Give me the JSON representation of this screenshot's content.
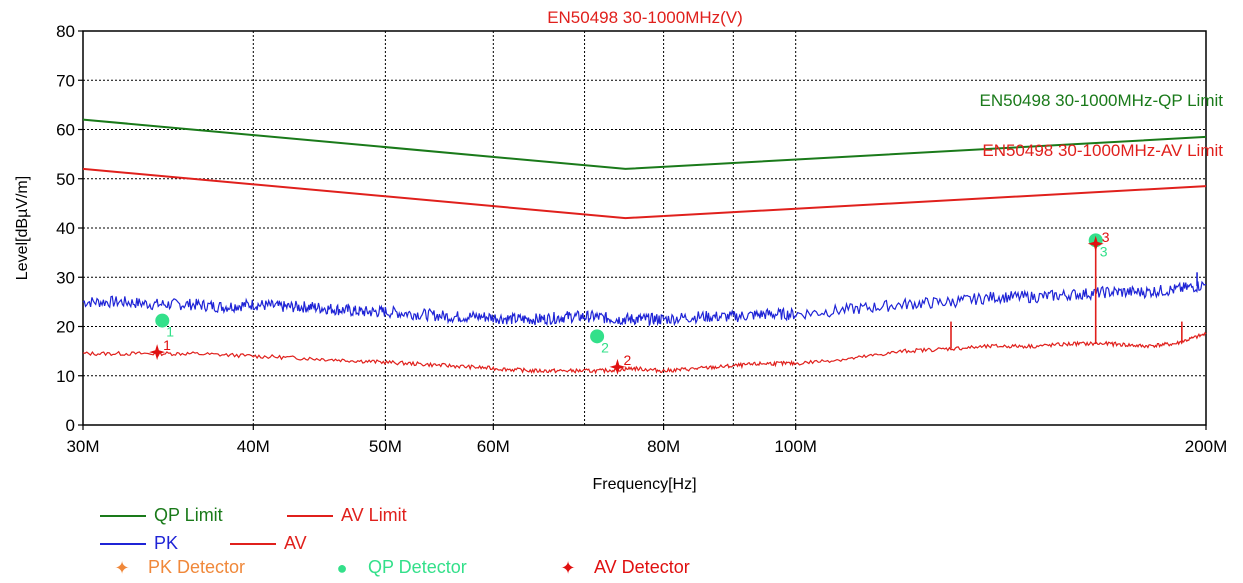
{
  "chart_data": {
    "type": "line",
    "title": "EN50498 30-1000MHz(V)",
    "xlabel": "Frequency[Hz]",
    "ylabel": "Level[dBµV/m]",
    "x_scale": "log",
    "xlim": [
      30000000,
      200000000
    ],
    "ylim": [
      0,
      80
    ],
    "x_ticks": [
      {
        "value": 30000000,
        "label": "30M"
      },
      {
        "value": 40000000,
        "label": "40M"
      },
      {
        "value": 50000000,
        "label": "50M"
      },
      {
        "value": 60000000,
        "label": "60M"
      },
      {
        "value": 80000000,
        "label": "80M"
      },
      {
        "value": 100000000,
        "label": "100M"
      },
      {
        "value": 200000000,
        "label": "200M"
      }
    ],
    "x_gridlines": [
      30000000,
      40000000,
      50000000,
      60000000,
      70000000,
      80000000,
      90000000,
      100000000,
      200000000
    ],
    "y_ticks": [
      0,
      10,
      20,
      30,
      40,
      50,
      60,
      70,
      80
    ],
    "grid": true,
    "colors": {
      "qp_limit": "#1a7a1a",
      "av_limit": "#e0201c",
      "pk": "#1f24d6",
      "av": "#e0201c",
      "qp_marker": "#33e08a",
      "av_marker": "#e01010",
      "pk_marker": "#f0883a"
    },
    "series": [
      {
        "name": "QP Limit",
        "x": [
          30000000,
          75000000,
          200000000
        ],
        "y": [
          62,
          52,
          58.5
        ]
      },
      {
        "name": "AV Limit",
        "x": [
          30000000,
          75000000,
          200000000
        ],
        "y": [
          52,
          42,
          48.5
        ]
      },
      {
        "name": "PK",
        "x": [
          30000000,
          32000000,
          34000000,
          36000000,
          38000000,
          40000000,
          42000000,
          44000000,
          46000000,
          48000000,
          50000000,
          53000000,
          56000000,
          59000000,
          62000000,
          65000000,
          68000000,
          71000000,
          74000000,
          77000000,
          80000000,
          85000000,
          90000000,
          95000000,
          100000000,
          110000000,
          120000000,
          130000000,
          140000000,
          150000000,
          160000000,
          170000000,
          180000000,
          190000000,
          200000000
        ],
        "y": [
          25,
          25,
          24.5,
          24.5,
          24,
          24.5,
          24,
          24,
          23.5,
          23,
          23,
          22.5,
          22,
          22,
          21.5,
          21.5,
          22,
          22,
          21.5,
          21.5,
          21.5,
          22,
          22,
          22.5,
          22.5,
          23.5,
          24.5,
          25,
          26,
          26,
          26.5,
          27,
          27,
          27.5,
          28.5
        ]
      },
      {
        "name": "AV",
        "x": [
          30000000,
          33000000,
          36000000,
          40000000,
          44000000,
          48000000,
          52000000,
          56000000,
          60000000,
          64000000,
          68000000,
          72000000,
          76000000,
          80000000,
          85000000,
          90000000,
          95000000,
          100000000,
          110000000,
          120000000,
          130000000,
          140000000,
          150000000,
          160000000,
          170000000,
          180000000,
          190000000,
          200000000
        ],
        "y": [
          14.5,
          14.5,
          14.5,
          14,
          13.5,
          13,
          12.5,
          12,
          11.5,
          11,
          11,
          11,
          11.5,
          11,
          11.5,
          12,
          12.5,
          12.5,
          13.5,
          15,
          15.5,
          16,
          16,
          16.5,
          16.5,
          16,
          16.5,
          18.5
        ]
      },
      {
        "name": "PK Detector",
        "points": []
      },
      {
        "name": "QP Detector",
        "points": [
          {
            "x": 34300000,
            "y": 21.2,
            "label": "1"
          },
          {
            "x": 71500000,
            "y": 18.0,
            "label": "2"
          },
          {
            "x": 166000000,
            "y": 37.5,
            "label": "3"
          }
        ]
      },
      {
        "name": "AV Detector",
        "points": [
          {
            "x": 34000000,
            "y": 14.8,
            "label": "1"
          },
          {
            "x": 74000000,
            "y": 11.8,
            "label": "2"
          },
          {
            "x": 166000000,
            "y": 36.8,
            "label": "3"
          }
        ]
      }
    ],
    "spikes": [
      {
        "series": "AV",
        "x": 130000000,
        "y": 21
      },
      {
        "series": "AV",
        "x": 166000000,
        "y": 36
      },
      {
        "series": "AV",
        "x": 192000000,
        "y": 21
      },
      {
        "series": "PK",
        "x": 197000000,
        "y": 31
      }
    ],
    "annotations": [
      {
        "text": "EN50498 30-1000MHz-QP Limit",
        "color": "#1a7a1a"
      },
      {
        "text": "EN50498 30-1000MHz-AV Limit",
        "color": "#e0201c"
      }
    ],
    "legend": {
      "placement": "bottom-left",
      "entries": [
        {
          "label": "QP Limit",
          "kind": "line",
          "color": "#1a7a1a"
        },
        {
          "label": "AV Limit",
          "kind": "line",
          "color": "#e0201c"
        },
        {
          "label": "PK",
          "kind": "line",
          "color": "#1f24d6"
        },
        {
          "label": "AV",
          "kind": "line",
          "color": "#e0201c"
        },
        {
          "label": "PK Detector",
          "kind": "marker",
          "marker": "✦",
          "color": "#f0883a"
        },
        {
          "label": "QP Detector",
          "kind": "marker",
          "marker": "●",
          "color": "#33e08a"
        },
        {
          "label": "AV Detector",
          "kind": "marker",
          "marker": "✦",
          "color": "#e01010"
        }
      ]
    }
  }
}
